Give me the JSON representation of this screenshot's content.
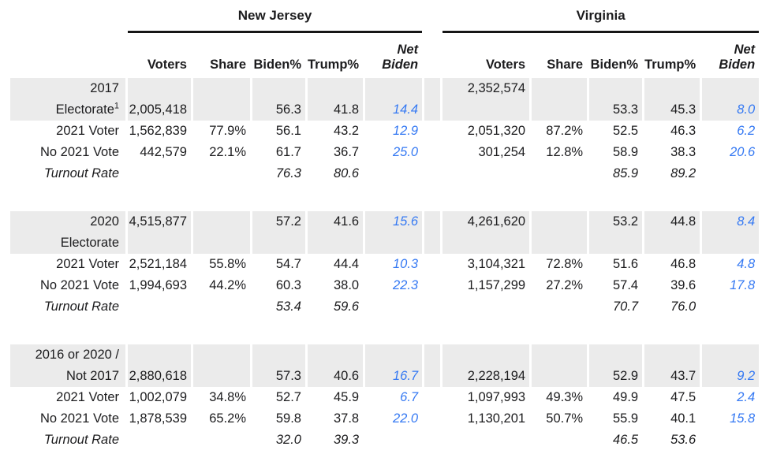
{
  "colors": {
    "band_background": "#ebebeb",
    "net_biden_blue": "#3579f3",
    "text": "#1c1c1e",
    "header_rule": "#161616"
  },
  "header": {
    "groups": [
      {
        "label": "New Jersey"
      },
      {
        "label": "Virginia"
      }
    ],
    "columns": {
      "voters": "Voters",
      "share": "Share",
      "biden": "Biden%",
      "trump": "Trump%",
      "net1": "Net",
      "net2": "Biden"
    }
  },
  "rows": [
    {
      "label": "2017",
      "cells": {
        "va_voters": "2,352,574"
      }
    },
    {
      "label": "Electorate",
      "sup": "1",
      "cells": {
        "nj_voters": "2,005,418",
        "nj_biden": "56.3",
        "nj_trump": "41.8",
        "nj_net": "14.4",
        "va_biden": "53.3",
        "va_trump": "45.3",
        "va_net": "8.0"
      }
    },
    {
      "label": "2021 Voter",
      "cells": {
        "nj_voters": "1,562,839",
        "nj_share": "77.9%",
        "nj_biden": "56.1",
        "nj_trump": "43.2",
        "nj_net": "12.9",
        "va_voters": "2,051,320",
        "va_share": "87.2%",
        "va_biden": "52.5",
        "va_trump": "46.3",
        "va_net": "6.2"
      }
    },
    {
      "label": "No 2021 Vote",
      "cells": {
        "nj_voters": "442,579",
        "nj_share": "22.1%",
        "nj_biden": "61.7",
        "nj_trump": "36.7",
        "nj_net": "25.0",
        "va_voters": "301,254",
        "va_share": "12.8%",
        "va_biden": "58.9",
        "va_trump": "38.3",
        "va_net": "20.6"
      }
    },
    {
      "label": "Turnout Rate",
      "cells": {
        "nj_biden": "76.3",
        "nj_trump": "80.6",
        "va_biden": "85.9",
        "va_trump": "89.2"
      }
    },
    {
      "label": "2020",
      "cells": {
        "nj_voters": "4,515,877",
        "nj_biden": "57.2",
        "nj_trump": "41.6",
        "nj_net": "15.6",
        "va_voters": "4,261,620",
        "va_biden": "53.2",
        "va_trump": "44.8",
        "va_net": "8.4"
      }
    },
    {
      "label": "Electorate",
      "cells": {}
    },
    {
      "label": "2021 Voter",
      "cells": {
        "nj_voters": "2,521,184",
        "nj_share": "55.8%",
        "nj_biden": "54.7",
        "nj_trump": "44.4",
        "nj_net": "10.3",
        "va_voters": "3,104,321",
        "va_share": "72.8%",
        "va_biden": "51.6",
        "va_trump": "46.8",
        "va_net": "4.8"
      }
    },
    {
      "label": "No 2021 Vote",
      "cells": {
        "nj_voters": "1,994,693",
        "nj_share": "44.2%",
        "nj_biden": "60.3",
        "nj_trump": "38.0",
        "nj_net": "22.3",
        "va_voters": "1,157,299",
        "va_share": "27.2%",
        "va_biden": "57.4",
        "va_trump": "39.6",
        "va_net": "17.8"
      }
    },
    {
      "label": "Turnout Rate",
      "cells": {
        "nj_biden": "53.4",
        "nj_trump": "59.6",
        "va_biden": "70.7",
        "va_trump": "76.0"
      }
    },
    {
      "label": "2016 or 2020 /",
      "cells": {}
    },
    {
      "label": "Not 2017",
      "cells": {
        "nj_voters": "2,880,618",
        "nj_biden": "57.3",
        "nj_trump": "40.6",
        "nj_net": "16.7",
        "va_voters": "2,228,194",
        "va_biden": "52.9",
        "va_trump": "43.7",
        "va_net": "9.2"
      }
    },
    {
      "label": "2021 Voter",
      "cells": {
        "nj_voters": "1,002,079",
        "nj_share": "34.8%",
        "nj_biden": "52.7",
        "nj_trump": "45.9",
        "nj_net": "6.7",
        "va_voters": "1,097,993",
        "va_share": "49.3%",
        "va_biden": "49.9",
        "va_trump": "47.5",
        "va_net": "2.4"
      }
    },
    {
      "label": "No 2021 Vote",
      "cells": {
        "nj_voters": "1,878,539",
        "nj_share": "65.2%",
        "nj_biden": "59.8",
        "nj_trump": "37.8",
        "nj_net": "22.0",
        "va_voters": "1,130,201",
        "va_share": "50.7%",
        "va_biden": "55.9",
        "va_trump": "40.1",
        "va_net": "15.8"
      }
    },
    {
      "label": "Turnout Rate",
      "cells": {
        "nj_biden": "32.0",
        "nj_trump": "39.3",
        "va_biden": "46.5",
        "va_trump": "53.6"
      }
    }
  ],
  "chart_data": {
    "type": "table",
    "title": "",
    "column_groups": [
      "New Jersey",
      "Virginia"
    ],
    "columns": [
      "Voters",
      "Share",
      "Biden%",
      "Trump%",
      "Net Biden"
    ],
    "sections": [
      {
        "name": "2017 Electorate",
        "rows": [
          {
            "label": "2017 Electorate",
            "new_jersey": {
              "voters": 2005418,
              "biden_pct": 56.3,
              "trump_pct": 41.8,
              "net_biden": 14.4
            },
            "virginia": {
              "voters": 2352574,
              "biden_pct": 53.3,
              "trump_pct": 45.3,
              "net_biden": 8.0
            }
          },
          {
            "label": "2021 Voter",
            "new_jersey": {
              "voters": 1562839,
              "share_pct": 77.9,
              "biden_pct": 56.1,
              "trump_pct": 43.2,
              "net_biden": 12.9
            },
            "virginia": {
              "voters": 2051320,
              "share_pct": 87.2,
              "biden_pct": 52.5,
              "trump_pct": 46.3,
              "net_biden": 6.2
            }
          },
          {
            "label": "No 2021 Vote",
            "new_jersey": {
              "voters": 442579,
              "share_pct": 22.1,
              "biden_pct": 61.7,
              "trump_pct": 36.7,
              "net_biden": 25.0
            },
            "virginia": {
              "voters": 301254,
              "share_pct": 12.8,
              "biden_pct": 58.9,
              "trump_pct": 38.3,
              "net_biden": 20.6
            }
          },
          {
            "label": "Turnout Rate",
            "new_jersey": {
              "biden_pct": 76.3,
              "trump_pct": 80.6
            },
            "virginia": {
              "biden_pct": 85.9,
              "trump_pct": 89.2
            }
          }
        ]
      },
      {
        "name": "2020 Electorate",
        "rows": [
          {
            "label": "2020 Electorate",
            "new_jersey": {
              "voters": 4515877,
              "biden_pct": 57.2,
              "trump_pct": 41.6,
              "net_biden": 15.6
            },
            "virginia": {
              "voters": 4261620,
              "biden_pct": 53.2,
              "trump_pct": 44.8,
              "net_biden": 8.4
            }
          },
          {
            "label": "2021 Voter",
            "new_jersey": {
              "voters": 2521184,
              "share_pct": 55.8,
              "biden_pct": 54.7,
              "trump_pct": 44.4,
              "net_biden": 10.3
            },
            "virginia": {
              "voters": 3104321,
              "share_pct": 72.8,
              "biden_pct": 51.6,
              "trump_pct": 46.8,
              "net_biden": 4.8
            }
          },
          {
            "label": "No 2021 Vote",
            "new_jersey": {
              "voters": 1994693,
              "share_pct": 44.2,
              "biden_pct": 60.3,
              "trump_pct": 38.0,
              "net_biden": 22.3
            },
            "virginia": {
              "voters": 1157299,
              "share_pct": 27.2,
              "biden_pct": 57.4,
              "trump_pct": 39.6,
              "net_biden": 17.8
            }
          },
          {
            "label": "Turnout Rate",
            "new_jersey": {
              "biden_pct": 53.4,
              "trump_pct": 59.6
            },
            "virginia": {
              "biden_pct": 70.7,
              "trump_pct": 76.0
            }
          }
        ]
      },
      {
        "name": "2016 or 2020 / Not 2017",
        "rows": [
          {
            "label": "2016 or 2020 / Not 2017",
            "new_jersey": {
              "voters": 2880618,
              "biden_pct": 57.3,
              "trump_pct": 40.6,
              "net_biden": 16.7
            },
            "virginia": {
              "voters": 2228194,
              "biden_pct": 52.9,
              "trump_pct": 43.7,
              "net_biden": 9.2
            }
          },
          {
            "label": "2021 Voter",
            "new_jersey": {
              "voters": 1002079,
              "share_pct": 34.8,
              "biden_pct": 52.7,
              "trump_pct": 45.9,
              "net_biden": 6.7
            },
            "virginia": {
              "voters": 1097993,
              "share_pct": 49.3,
              "biden_pct": 49.9,
              "trump_pct": 47.5,
              "net_biden": 2.4
            }
          },
          {
            "label": "No 2021 Vote",
            "new_jersey": {
              "voters": 1878539,
              "share_pct": 65.2,
              "biden_pct": 59.8,
              "trump_pct": 37.8,
              "net_biden": 22.0
            },
            "virginia": {
              "voters": 1130201,
              "share_pct": 50.7,
              "biden_pct": 55.9,
              "trump_pct": 40.1,
              "net_biden": 15.8
            }
          },
          {
            "label": "Turnout Rate",
            "new_jersey": {
              "biden_pct": 32.0,
              "trump_pct": 39.3
            },
            "virginia": {
              "biden_pct": 46.5,
              "trump_pct": 53.6
            }
          }
        ]
      }
    ]
  }
}
